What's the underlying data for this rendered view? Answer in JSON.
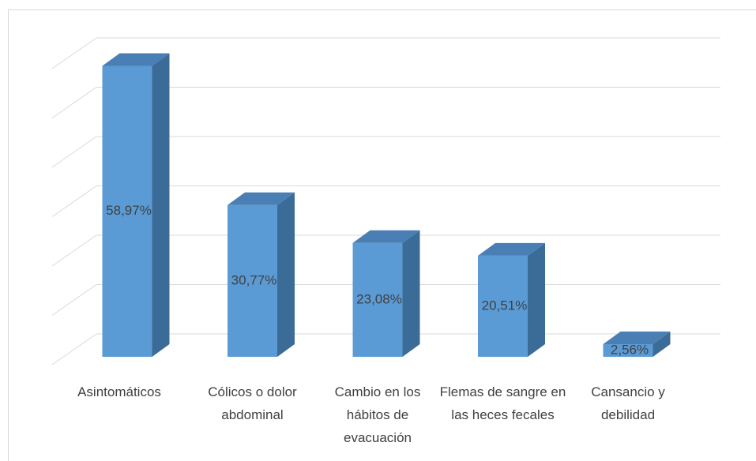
{
  "chart_data": {
    "type": "bar3d",
    "categories": [
      "Asintomáticos",
      "Cólicos o dolor abdominal",
      "Cambio en los hábitos de evacuación",
      "Flemas de sangre en las heces fecales",
      "Cansancio y debilidad"
    ],
    "values": [
      58.97,
      30.77,
      23.08,
      20.51,
      2.56
    ],
    "value_labels": [
      "58,97%",
      "30,77%",
      "23,08%",
      "20,51%",
      "2,56%"
    ],
    "color": "#5b9bd5",
    "ylim": [
      0,
      60
    ],
    "yticks": [
      0,
      10,
      20,
      30,
      40,
      50,
      60
    ],
    "grid": true
  }
}
